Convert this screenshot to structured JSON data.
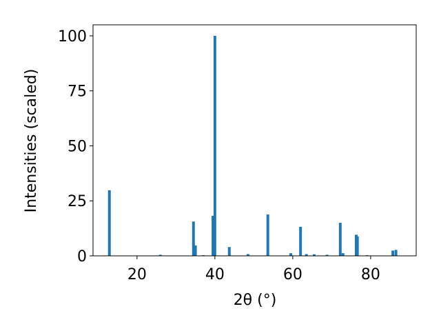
{
  "chart_data": {
    "type": "bar",
    "xlabel": "2θ (°)",
    "ylabel": "Intensities (scaled)",
    "color": "#1f77b4",
    "x": [
      12.9,
      26.0,
      34.5,
      35.0,
      37.0,
      39.5,
      40.0,
      43.7,
      48.5,
      53.6,
      59.5,
      62.0,
      63.5,
      65.5,
      68.8,
      72.2,
      72.9,
      76.3,
      76.6,
      79.1,
      85.7,
      86.5
    ],
    "values": [
      29.8,
      0.5,
      15.6,
      4.7,
      0.3,
      18.2,
      100,
      4.0,
      0.8,
      18.8,
      1.2,
      13.2,
      0.8,
      0.7,
      0.5,
      15.0,
      1.2,
      9.6,
      8.8,
      0.3,
      2.4,
      2.7
    ],
    "xlim": [
      8.7,
      91.7
    ],
    "ylim": [
      0,
      105
    ],
    "xticks": [
      20,
      40,
      60,
      80
    ],
    "yticks": [
      0,
      25,
      50,
      75,
      100
    ],
    "grid": false
  }
}
